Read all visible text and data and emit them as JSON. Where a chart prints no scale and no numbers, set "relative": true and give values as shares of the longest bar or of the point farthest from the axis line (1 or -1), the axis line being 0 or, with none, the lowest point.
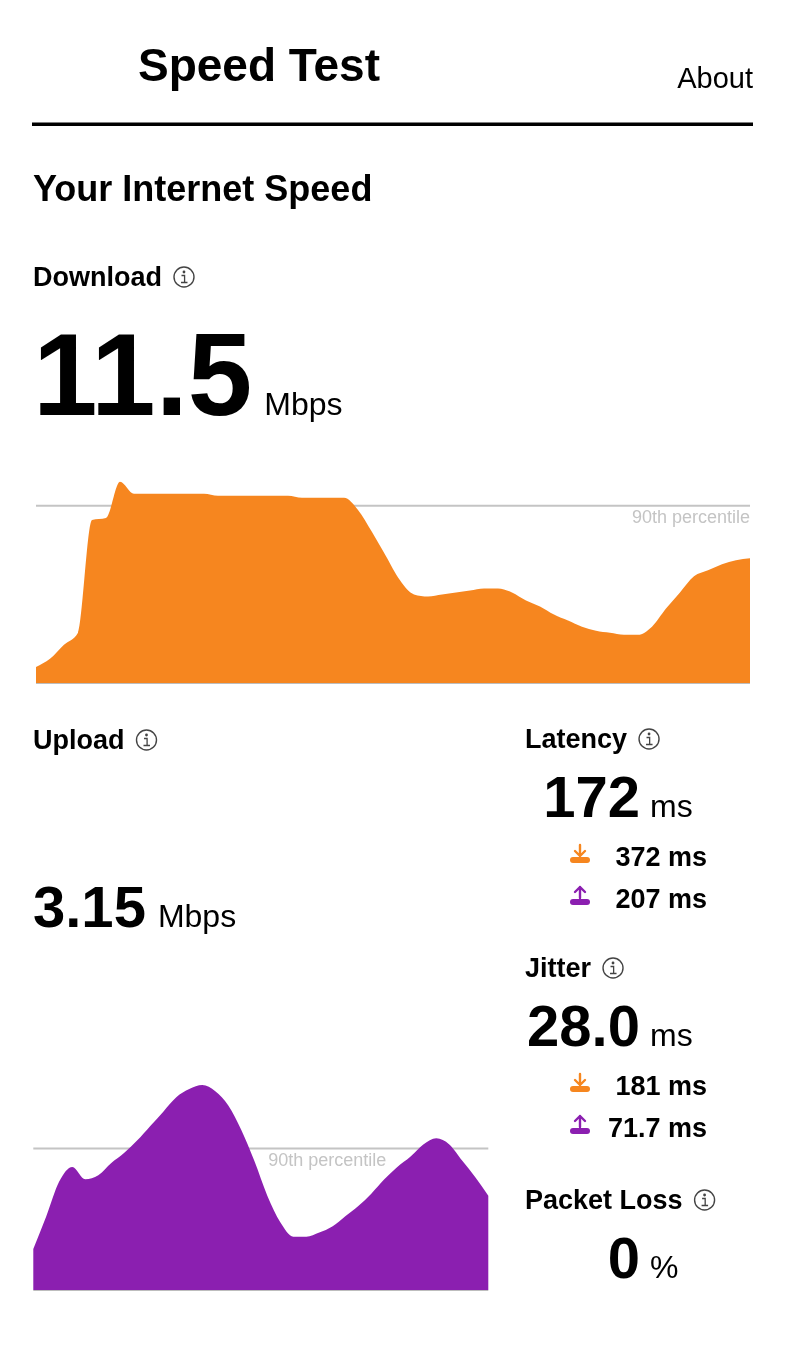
{
  "chart_data": [
    {
      "type": "other",
      "title": "Speed Test",
      "subtitle": "Your Internet Speed",
      "annotations": [
        "About"
      ]
    },
    {
      "type": "area",
      "title": "Download",
      "annotations": [
        "11.5",
        "Mbps"
      ],
      "categories": [
        null,
        null,
        null,
        null,
        null,
        null,
        null,
        null,
        null,
        null,
        null,
        null,
        null,
        null,
        null,
        null,
        null,
        null,
        null,
        null,
        null,
        null,
        null,
        null,
        null,
        null,
        null,
        null,
        null,
        null,
        null,
        null,
        null,
        null,
        null,
        null,
        null,
        null,
        null,
        null,
        null,
        null,
        null,
        null,
        null,
        null,
        null,
        null,
        null,
        null,
        null,
        null
      ],
      "series": [
        {
          "color": "#f6861f",
          "values": [
            0.08,
            0.12,
            0.19,
            0.25,
            0.81,
            0.82,
            1,
            0.94,
            0.94,
            0.94,
            0.94,
            0.94,
            0.94,
            0.93,
            0.93,
            0.93,
            0.93,
            0.93,
            0.93,
            0.92,
            0.92,
            0.92,
            0.92,
            0.86,
            0.75,
            0.63,
            0.51,
            0.44,
            0.43,
            0.44,
            0.45,
            0.46,
            0.47,
            0.47,
            0.45,
            0.41,
            0.38,
            0.34,
            0.31,
            0.28,
            0.26,
            0.25,
            0.24,
            0.24,
            0.28,
            0.37,
            0.45,
            0.53,
            0.56,
            0.59,
            0.61,
            0.62
          ]
        }
      ],
      "relative": true,
      "ref_lines": [
        {
          "axis": "y",
          "value": 0.88,
          "label": "90th percentile",
          "color": "#c4c4c4"
        }
      ]
    },
    {
      "type": "area",
      "title": "Upload",
      "annotations": [
        "3.15",
        "Mbps"
      ],
      "categories": [
        null,
        null,
        null,
        null,
        null,
        null,
        null,
        null,
        null,
        null,
        null,
        null,
        null,
        null,
        null,
        null,
        null,
        null,
        null,
        null,
        null,
        null,
        null,
        null,
        null,
        null,
        null,
        null,
        null,
        null,
        null,
        null,
        null,
        null,
        null,
        null
      ],
      "series": [
        {
          "color": "#8b1fb0",
          "values": [
            0.2,
            0.36,
            0.53,
            0.6,
            0.54,
            0.56,
            0.62,
            0.67,
            0.73,
            0.8,
            0.87,
            0.94,
            0.98,
            1,
            0.97,
            0.9,
            0.78,
            0.63,
            0.46,
            0.33,
            0.26,
            0.26,
            0.28,
            0.31,
            0.36,
            0.41,
            0.47,
            0.54,
            0.6,
            0.65,
            0.71,
            0.74,
            0.71,
            0.63,
            0.55,
            0.46
          ]
        }
      ],
      "relative": true,
      "ref_lines": [
        {
          "axis": "y",
          "value": 0.69,
          "label": "90th percentile",
          "color": "#c4c4c4"
        }
      ]
    },
    {
      "type": "other",
      "annotations": [
        "Latency",
        "172",
        "ms",
        "372 ms",
        "207 ms",
        "Jitter",
        "28.0",
        "ms",
        "181 ms",
        "71.7 ms",
        "Packet Loss",
        "0",
        "%"
      ]
    }
  ]
}
